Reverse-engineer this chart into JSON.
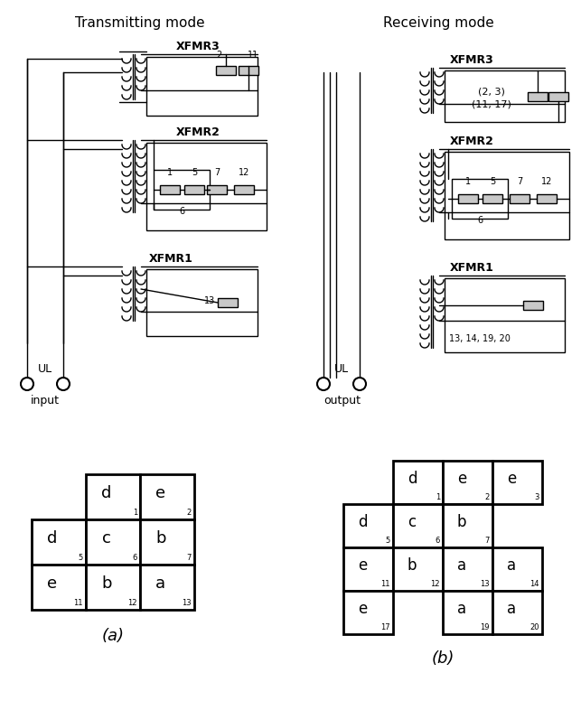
{
  "title_a": "Transmitting mode",
  "title_b": "Receiving mode",
  "label_a": "(a)",
  "label_b": "(b)",
  "ul_label": "UL",
  "input_label": "input",
  "output_label": "output",
  "bg_color": "#ffffff",
  "lc": "#000000",
  "box_fill": "#c8c8c8"
}
